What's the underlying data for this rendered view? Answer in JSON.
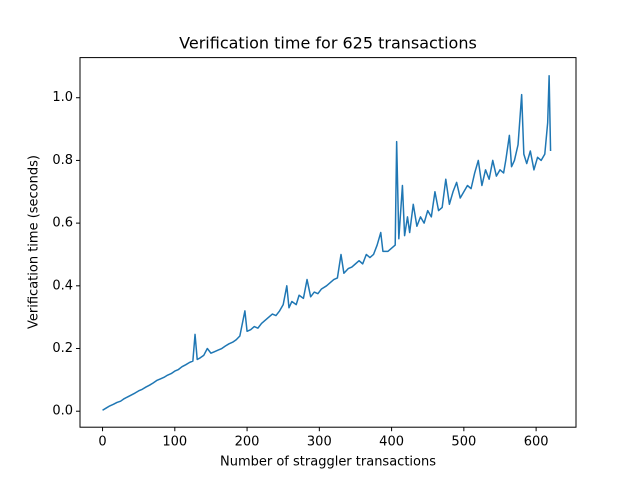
{
  "chart_data": {
    "type": "line",
    "title": "Verification time for 625 transactions",
    "x_label": "Number of straggler transactions",
    "y_label": "Verification time (seconds)",
    "xlim": [
      -31.2,
      655.2
    ],
    "xticks": [
      0,
      100,
      200,
      300,
      400,
      500,
      600
    ],
    "ylim": [
      -0.051,
      1.128
    ],
    "yticks": [
      {
        "value": 0,
        "label": "0.0"
      },
      0.2,
      0.4,
      0.6,
      0.8,
      {
        "value": 1,
        "label": "1.0"
      }
    ],
    "series": [
      {
        "color": "#1f77b4",
        "x": [
          0,
          5,
          10,
          15,
          20,
          25,
          30,
          35,
          40,
          45,
          50,
          55,
          60,
          65,
          70,
          75,
          80,
          85,
          90,
          95,
          100,
          105,
          110,
          115,
          120,
          125,
          128,
          131,
          135,
          140,
          145,
          150,
          155,
          160,
          165,
          170,
          175,
          180,
          185,
          190,
          197,
          200,
          205,
          210,
          215,
          220,
          225,
          230,
          235,
          240,
          245,
          250,
          255,
          258,
          262,
          268,
          272,
          278,
          283,
          288,
          293,
          298,
          303,
          310,
          315,
          320,
          325,
          330,
          334,
          340,
          345,
          350,
          355,
          360,
          365,
          370,
          375,
          380,
          385,
          388,
          395,
          400,
          405,
          407,
          410,
          415,
          418,
          422,
          425,
          430,
          435,
          440,
          445,
          450,
          455,
          460,
          465,
          470,
          475,
          480,
          485,
          490,
          495,
          500,
          505,
          510,
          515,
          520,
          525,
          530,
          535,
          540,
          545,
          550,
          555,
          558,
          563,
          566,
          570,
          575,
          580,
          583,
          587,
          592,
          597,
          602,
          607,
          612,
          616,
          618,
          620
        ],
        "values": [
          0.003,
          0.01,
          0.017,
          0.022,
          0.028,
          0.032,
          0.04,
          0.046,
          0.052,
          0.058,
          0.065,
          0.07,
          0.077,
          0.083,
          0.09,
          0.098,
          0.103,
          0.108,
          0.115,
          0.12,
          0.128,
          0.133,
          0.142,
          0.148,
          0.155,
          0.16,
          0.245,
          0.165,
          0.17,
          0.178,
          0.2,
          0.185,
          0.19,
          0.195,
          0.2,
          0.208,
          0.215,
          0.22,
          0.228,
          0.24,
          0.32,
          0.255,
          0.26,
          0.27,
          0.265,
          0.28,
          0.29,
          0.3,
          0.31,
          0.305,
          0.32,
          0.34,
          0.4,
          0.33,
          0.35,
          0.34,
          0.37,
          0.36,
          0.42,
          0.365,
          0.38,
          0.375,
          0.39,
          0.4,
          0.41,
          0.42,
          0.425,
          0.5,
          0.44,
          0.455,
          0.46,
          0.47,
          0.48,
          0.47,
          0.5,
          0.49,
          0.5,
          0.53,
          0.57,
          0.51,
          0.51,
          0.52,
          0.53,
          0.86,
          0.55,
          0.72,
          0.56,
          0.62,
          0.57,
          0.66,
          0.59,
          0.62,
          0.6,
          0.64,
          0.62,
          0.7,
          0.64,
          0.65,
          0.74,
          0.66,
          0.7,
          0.73,
          0.68,
          0.7,
          0.72,
          0.71,
          0.76,
          0.8,
          0.72,
          0.77,
          0.74,
          0.8,
          0.75,
          0.77,
          0.76,
          0.8,
          0.88,
          0.78,
          0.8,
          0.85,
          1.01,
          0.82,
          0.79,
          0.83,
          0.77,
          0.81,
          0.8,
          0.82,
          0.92,
          1.07,
          0.83
        ]
      }
    ]
  }
}
